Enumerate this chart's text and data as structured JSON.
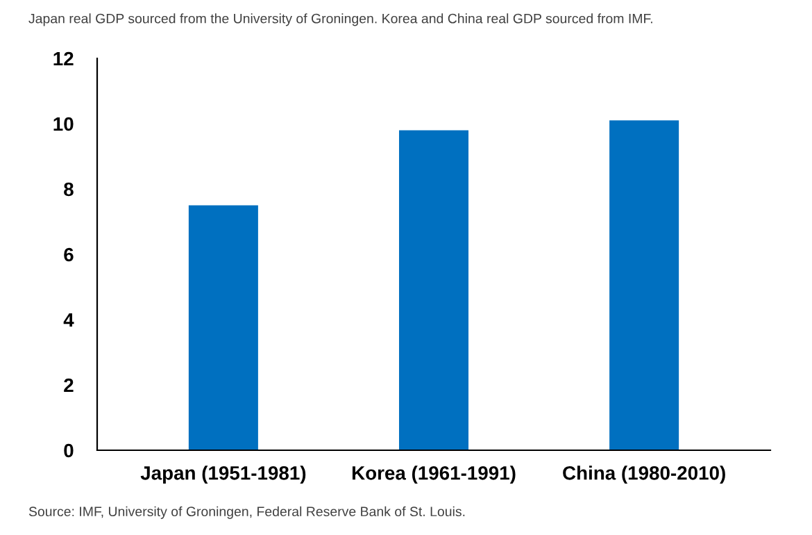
{
  "chart_data": {
    "type": "bar",
    "categories": [
      "Japan (1951-1981)",
      "Korea (1961-1991)",
      "China (1980-2010)"
    ],
    "values": [
      7.5,
      9.8,
      10.1
    ],
    "color": "#0070c0",
    "ylim": [
      0,
      12
    ],
    "yticks": [
      0,
      2,
      4,
      6,
      8,
      10,
      12
    ],
    "grid": false,
    "annotations": [
      "Japan real GDP sourced from the University of Groningen. Korea and China real GDP sourced from IMF.",
      "Source: IMF, University of Groningen, Federal Reserve Bank of St. Louis."
    ]
  }
}
